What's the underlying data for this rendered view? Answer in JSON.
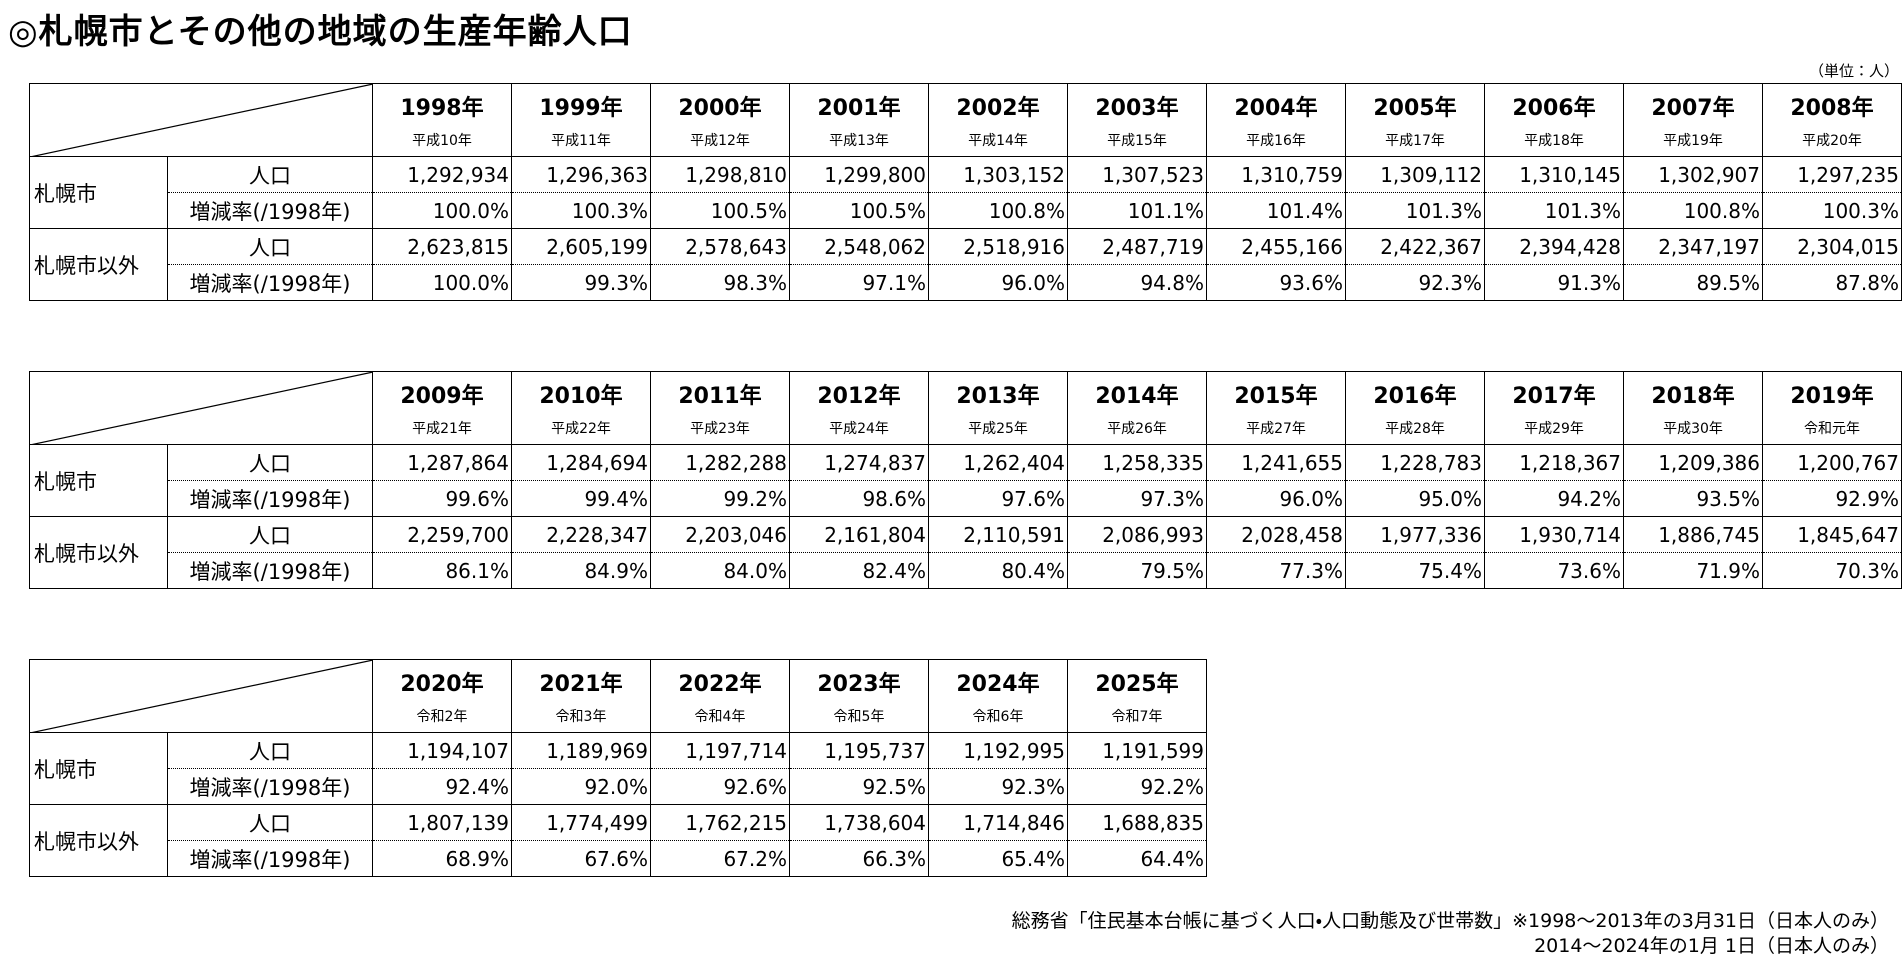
{
  "header": {
    "title": "◎札幌市とその他の地域の生産年齢人口",
    "unit": "（単位：人）"
  },
  "tables": [
    {
      "columns": [
        {
          "year": "1998年",
          "era": "平成10年"
        },
        {
          "year": "1999年",
          "era": "平成11年"
        },
        {
          "year": "2000年",
          "era": "平成12年"
        },
        {
          "year": "2001年",
          "era": "平成13年"
        },
        {
          "year": "2002年",
          "era": "平成14年"
        },
        {
          "year": "2003年",
          "era": "平成15年"
        },
        {
          "year": "2004年",
          "era": "平成16年"
        },
        {
          "year": "2005年",
          "era": "平成17年"
        },
        {
          "year": "2006年",
          "era": "平成18年"
        },
        {
          "year": "2007年",
          "era": "平成19年"
        },
        {
          "year": "2008年",
          "era": "平成20年"
        }
      ],
      "groups": [
        {
          "label": "札幌市",
          "rows": [
            {
              "label": "人口",
              "values": [
                "1,292,934",
                "1,296,363",
                "1,298,810",
                "1,299,800",
                "1,303,152",
                "1,307,523",
                "1,310,759",
                "1,309,112",
                "1,310,145",
                "1,302,907",
                "1,297,235"
              ]
            },
            {
              "label": "増減率(/1998年)",
              "values": [
                "100.0%",
                "100.3%",
                "100.5%",
                "100.5%",
                "100.8%",
                "101.1%",
                "101.4%",
                "101.3%",
                "101.3%",
                "100.8%",
                "100.3%"
              ]
            }
          ]
        },
        {
          "label": "札幌市以外",
          "rows": [
            {
              "label": "人口",
              "values": [
                "2,623,815",
                "2,605,199",
                "2,578,643",
                "2,548,062",
                "2,518,916",
                "2,487,719",
                "2,455,166",
                "2,422,367",
                "2,394,428",
                "2,347,197",
                "2,304,015"
              ]
            },
            {
              "label": "増減率(/1998年)",
              "values": [
                "100.0%",
                "99.3%",
                "98.3%",
                "97.1%",
                "96.0%",
                "94.8%",
                "93.6%",
                "92.3%",
                "91.3%",
                "89.5%",
                "87.8%"
              ]
            }
          ]
        }
      ]
    },
    {
      "columns": [
        {
          "year": "2009年",
          "era": "平成21年"
        },
        {
          "year": "2010年",
          "era": "平成22年"
        },
        {
          "year": "2011年",
          "era": "平成23年"
        },
        {
          "year": "2012年",
          "era": "平成24年"
        },
        {
          "year": "2013年",
          "era": "平成25年"
        },
        {
          "year": "2014年",
          "era": "平成26年"
        },
        {
          "year": "2015年",
          "era": "平成27年"
        },
        {
          "year": "2016年",
          "era": "平成28年"
        },
        {
          "year": "2017年",
          "era": "平成29年"
        },
        {
          "year": "2018年",
          "era": "平成30年"
        },
        {
          "year": "2019年",
          "era": "令和元年"
        }
      ],
      "groups": [
        {
          "label": "札幌市",
          "rows": [
            {
              "label": "人口",
              "values": [
                "1,287,864",
                "1,284,694",
                "1,282,288",
                "1,274,837",
                "1,262,404",
                "1,258,335",
                "1,241,655",
                "1,228,783",
                "1,218,367",
                "1,209,386",
                "1,200,767"
              ]
            },
            {
              "label": "増減率(/1998年)",
              "values": [
                "99.6%",
                "99.4%",
                "99.2%",
                "98.6%",
                "97.6%",
                "97.3%",
                "96.0%",
                "95.0%",
                "94.2%",
                "93.5%",
                "92.9%"
              ]
            }
          ]
        },
        {
          "label": "札幌市以外",
          "rows": [
            {
              "label": "人口",
              "values": [
                "2,259,700",
                "2,228,347",
                "2,203,046",
                "2,161,804",
                "2,110,591",
                "2,086,993",
                "2,028,458",
                "1,977,336",
                "1,930,714",
                "1,886,745",
                "1,845,647"
              ]
            },
            {
              "label": "増減率(/1998年)",
              "values": [
                "86.1%",
                "84.9%",
                "84.0%",
                "82.4%",
                "80.4%",
                "79.5%",
                "77.3%",
                "75.4%",
                "73.6%",
                "71.9%",
                "70.3%"
              ]
            }
          ]
        }
      ]
    },
    {
      "columns": [
        {
          "year": "2020年",
          "era": "令和2年"
        },
        {
          "year": "2021年",
          "era": "令和3年"
        },
        {
          "year": "2022年",
          "era": "令和4年"
        },
        {
          "year": "2023年",
          "era": "令和5年"
        },
        {
          "year": "2024年",
          "era": "令和6年"
        },
        {
          "year": "2025年",
          "era": "令和7年"
        }
      ],
      "groups": [
        {
          "label": "札幌市",
          "rows": [
            {
              "label": "人口",
              "values": [
                "1,194,107",
                "1,189,969",
                "1,197,714",
                "1,195,737",
                "1,192,995",
                "1,191,599"
              ]
            },
            {
              "label": "増減率(/1998年)",
              "values": [
                "92.4%",
                "92.0%",
                "92.6%",
                "92.5%",
                "92.3%",
                "92.2%"
              ]
            }
          ]
        },
        {
          "label": "札幌市以外",
          "rows": [
            {
              "label": "人口",
              "values": [
                "1,807,139",
                "1,774,499",
                "1,762,215",
                "1,738,604",
                "1,714,846",
                "1,688,835"
              ]
            },
            {
              "label": "増減率(/1998年)",
              "values": [
                "68.9%",
                "67.6%",
                "67.2%",
                "66.3%",
                "65.4%",
                "64.4%"
              ]
            }
          ]
        }
      ]
    }
  ],
  "footer": {
    "lines": [
      "総務省「住民基本台帳に基づく人口・人口動態及び世帯数」※1998～2013年の3月31日（日本人のみ）",
      "2014～2024年の1月 1日（日本人のみ）"
    ]
  }
}
